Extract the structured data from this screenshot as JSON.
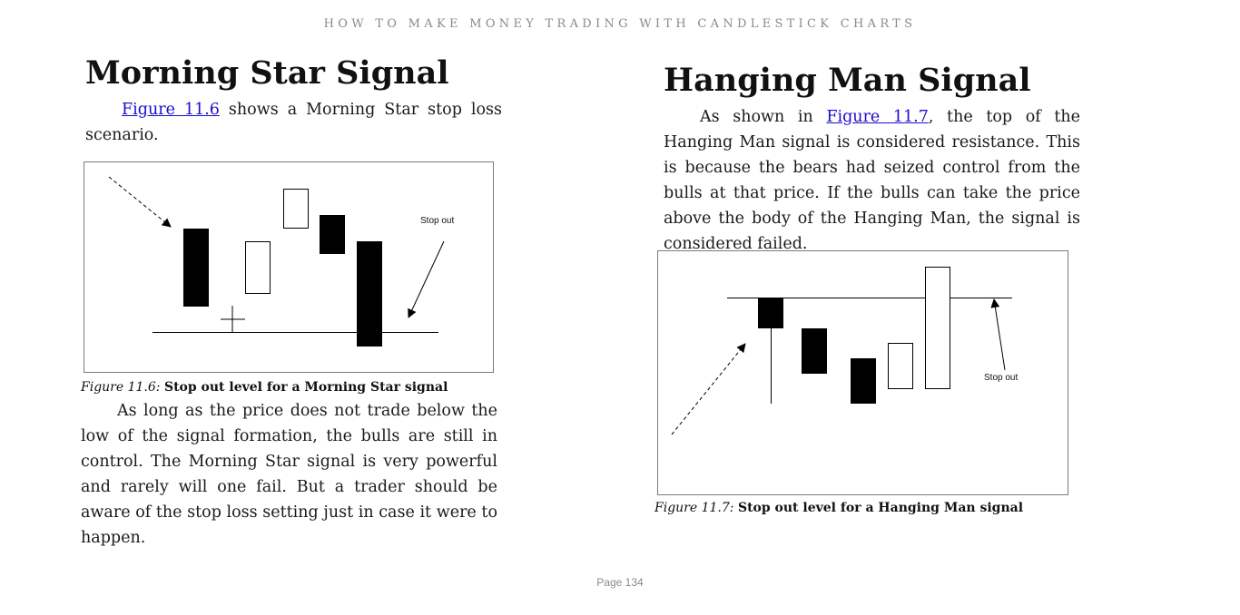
{
  "running_head": "HOW TO MAKE MONEY TRADING WITH CANDLESTICK CHARTS",
  "left": {
    "heading": "Morning Star Signal",
    "intro": {
      "link": "Figure 11.6",
      "text": " shows a Morning Star stop loss scenario."
    },
    "figure": {
      "label": "Figure 11.6:",
      "caption": "Stop out level for a Morning Star signal",
      "annotation": "Stop out"
    },
    "body": "As long as the price does not trade below the low of the signal formation, the bulls are still in control. The Morning Star signal is very powerful and rarely will one fail. But a trader should be aware of the stop loss setting just in case it were to happen."
  },
  "right": {
    "heading": "Hanging Man Signal",
    "intro": {
      "before": "As shown in ",
      "link": "Figure 11.7",
      "after": ", the top of the Hanging Man signal is considered resistance. This is because the bears had seized control from the bulls at that price. If the bulls can take the price above the body of the Hanging Man, the signal is considered failed."
    },
    "figure": {
      "label": "Figure 11.7:",
      "caption": "Stop out level for a Hanging Man signal",
      "annotation": "Stop out"
    }
  },
  "page_number": "Page 134",
  "colors": {
    "link": "#1a0dcc",
    "candle_bear": "#000000",
    "candle_bull": "#ffffff"
  }
}
